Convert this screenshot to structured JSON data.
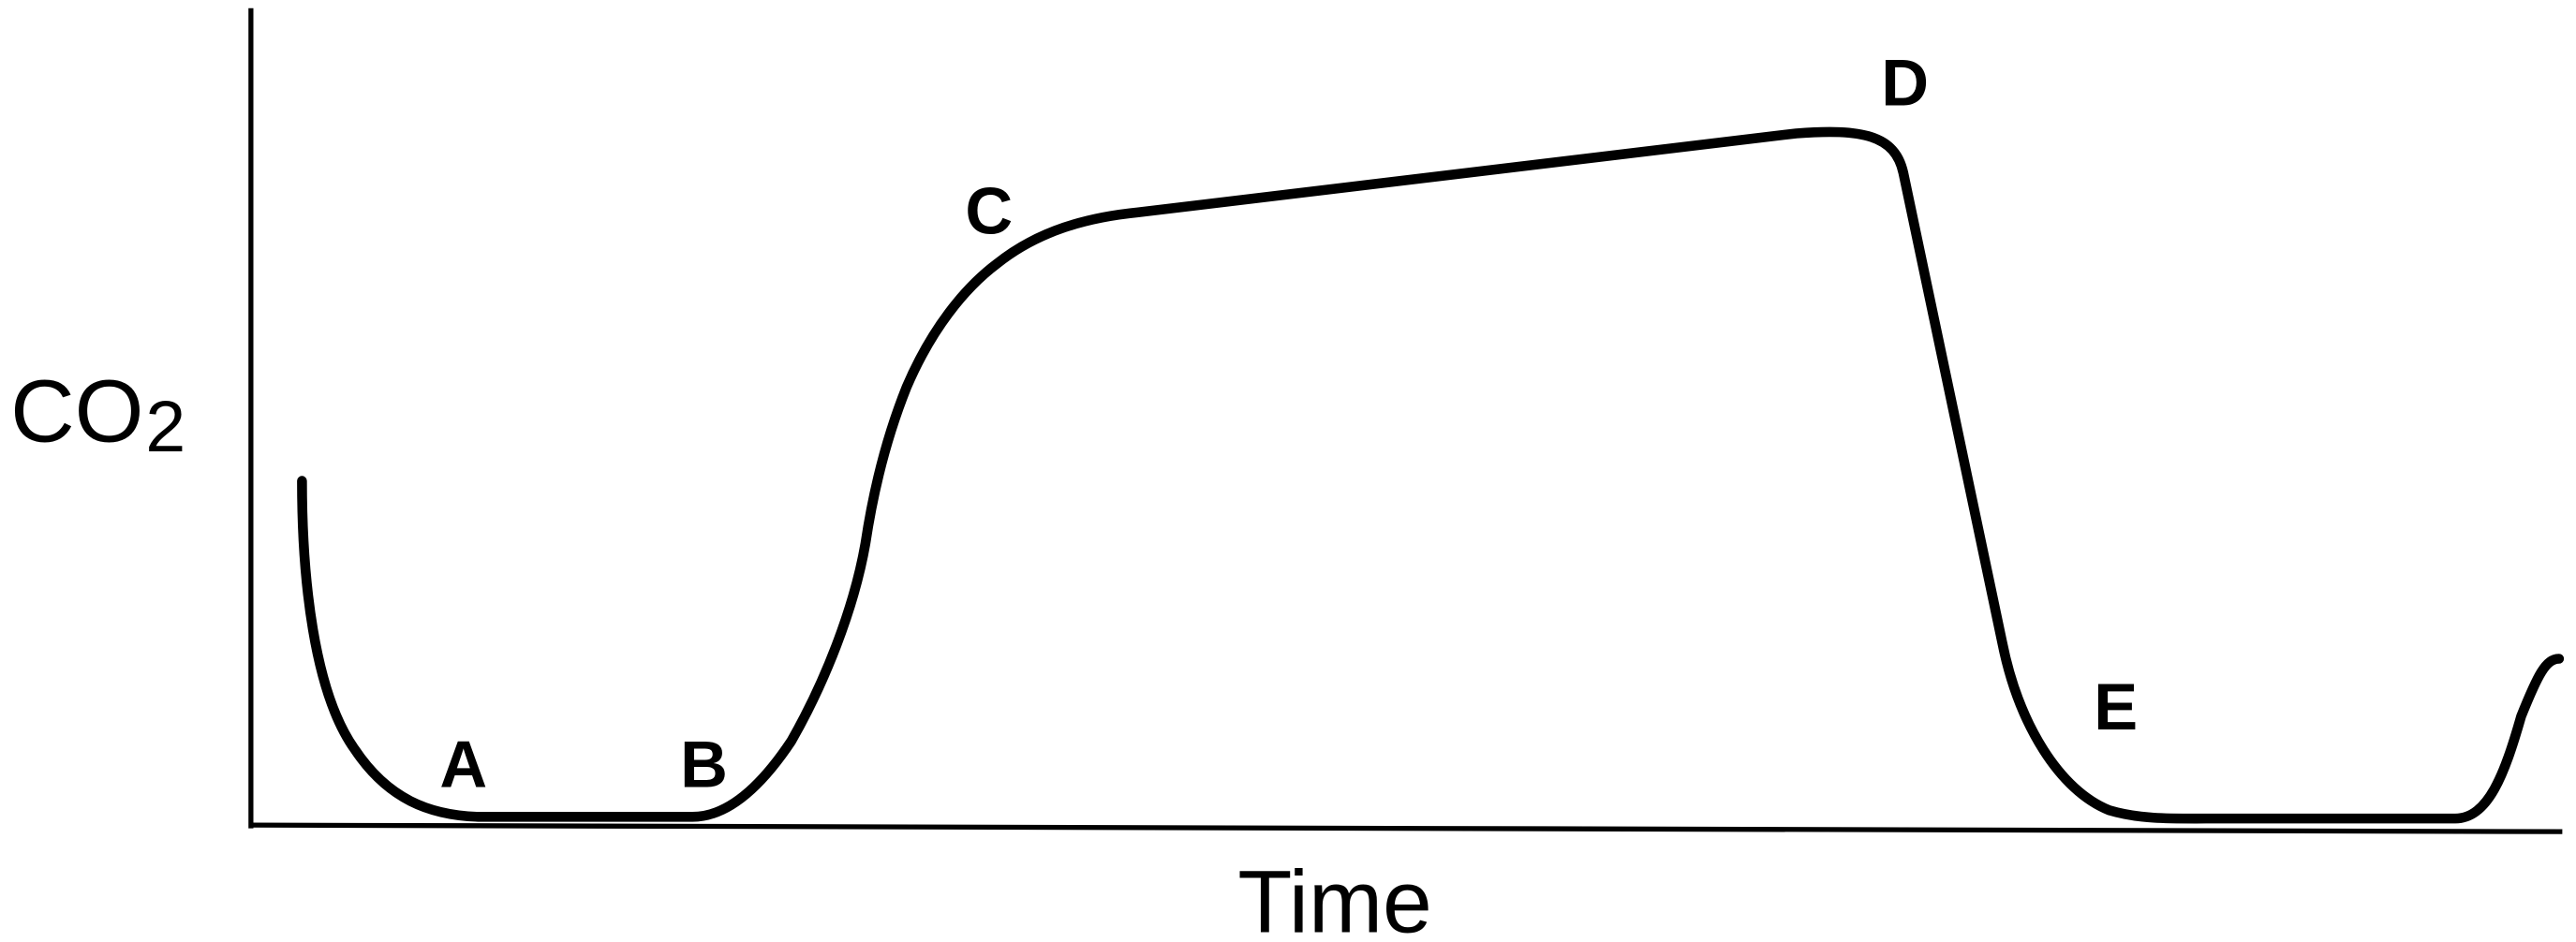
{
  "axes": {
    "y_label": {
      "main": "CO",
      "subscript": "2"
    },
    "x_label": "Time"
  },
  "points": [
    {
      "label": "A"
    },
    {
      "label": "B"
    },
    {
      "label": "C"
    },
    {
      "label": "D"
    },
    {
      "label": "E"
    }
  ]
}
